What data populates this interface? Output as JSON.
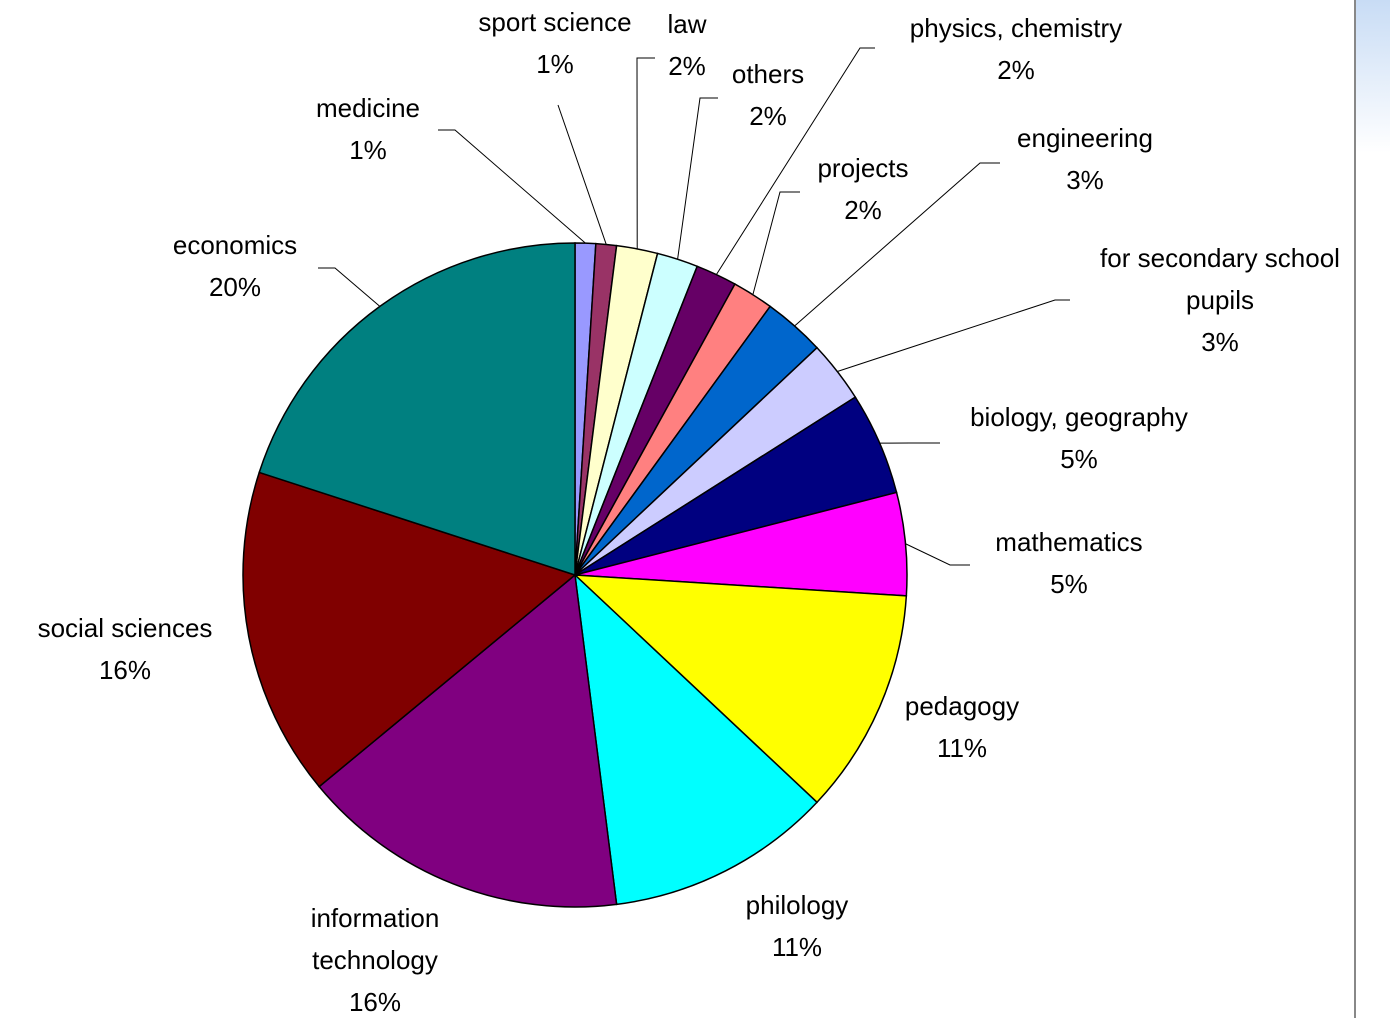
{
  "chart_data": {
    "type": "pie",
    "categories": [
      "medicine",
      "sport science",
      "law",
      "others",
      "physics, chemistry",
      "projects",
      "engineering",
      "for secondary school pupils",
      "biology, geography",
      "mathematics",
      "pedagogy",
      "philology",
      "information technology",
      "social sciences",
      "economics"
    ],
    "values": [
      1,
      1,
      2,
      2,
      2,
      2,
      3,
      3,
      5,
      5,
      11,
      11,
      16,
      16,
      20
    ],
    "value_labels": [
      "1%",
      "1%",
      "2%",
      "2%",
      "2%",
      "2%",
      "3%",
      "3%",
      "5%",
      "5%",
      "11%",
      "11%",
      "16%",
      "16%",
      "20%"
    ],
    "colors": [
      "#9999ff",
      "#993366",
      "#ffffcc",
      "#ccffff",
      "#660066",
      "#ff8080",
      "#0066cc",
      "#ccccff",
      "#000080",
      "#ff00ff",
      "#ffff00",
      "#00ffff",
      "#800080",
      "#800000",
      "#008080"
    ]
  }
}
